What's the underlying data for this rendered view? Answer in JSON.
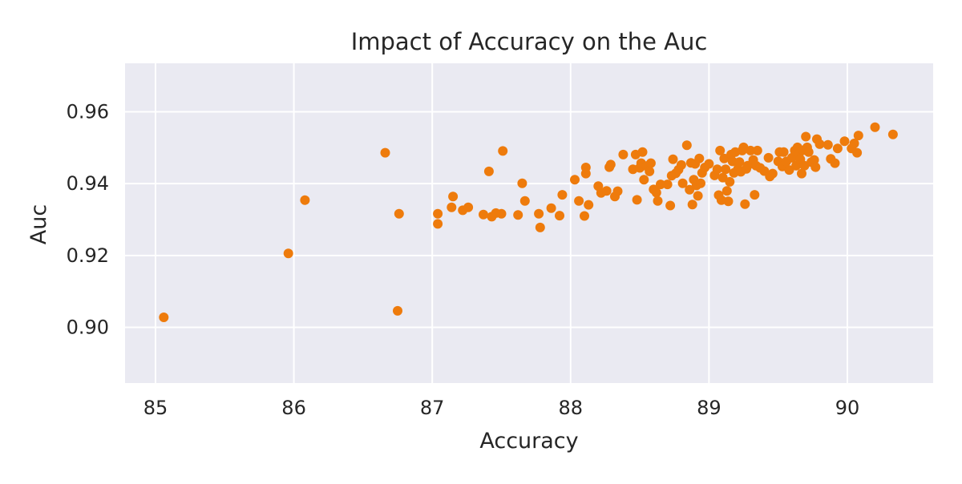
{
  "chart_data": {
    "type": "scatter",
    "title": "Impact of Accuracy on the Auc",
    "xlabel": "Accuracy",
    "ylabel": "Auc",
    "xlim": [
      84.78,
      90.62
    ],
    "ylim": [
      0.8845,
      0.9735
    ],
    "xticks": [
      85,
      86,
      87,
      88,
      89,
      90
    ],
    "yticks": [
      0.9,
      0.92,
      0.94,
      0.96
    ],
    "xtick_labels": [
      "85",
      "86",
      "87",
      "88",
      "89",
      "90"
    ],
    "ytick_labels": [
      "0.90",
      "0.92",
      "0.94",
      "0.96"
    ],
    "grid": true,
    "colors": {
      "point": "#ee7b0c",
      "plot_bg": "#eaeaf2",
      "grid": "#ffffff"
    },
    "points": [
      [
        85.06,
        0.9028
      ],
      [
        85.96,
        0.9206
      ],
      [
        86.08,
        0.9354
      ],
      [
        86.66,
        0.9486
      ],
      [
        86.75,
        0.9046
      ],
      [
        86.76,
        0.9316
      ],
      [
        87.04,
        0.9316
      ],
      [
        87.04,
        0.9288
      ],
      [
        87.14,
        0.9334
      ],
      [
        87.15,
        0.9364
      ],
      [
        87.22,
        0.9326
      ],
      [
        87.26,
        0.9334
      ],
      [
        87.37,
        0.9314
      ],
      [
        87.41,
        0.9434
      ],
      [
        87.43,
        0.9308
      ],
      [
        87.46,
        0.9318
      ],
      [
        87.5,
        0.9316
      ],
      [
        87.51,
        0.9491
      ],
      [
        87.62,
        0.9313
      ],
      [
        87.65,
        0.9401
      ],
      [
        87.67,
        0.9352
      ],
      [
        87.77,
        0.9316
      ],
      [
        87.78,
        0.9278
      ],
      [
        87.86,
        0.9332
      ],
      [
        87.92,
        0.9311
      ],
      [
        87.94,
        0.9369
      ],
      [
        88.03,
        0.9411
      ],
      [
        88.06,
        0.9352
      ],
      [
        88.1,
        0.931
      ],
      [
        88.11,
        0.9445
      ],
      [
        88.11,
        0.9428
      ],
      [
        88.13,
        0.9341
      ],
      [
        88.2,
        0.9393
      ],
      [
        88.22,
        0.9374
      ],
      [
        88.26,
        0.938
      ],
      [
        88.28,
        0.9446
      ],
      [
        88.29,
        0.9453
      ],
      [
        88.32,
        0.9364
      ],
      [
        88.34,
        0.9379
      ],
      [
        88.38,
        0.9481
      ],
      [
        88.45,
        0.944
      ],
      [
        88.47,
        0.9481
      ],
      [
        88.48,
        0.9355
      ],
      [
        88.5,
        0.9444
      ],
      [
        88.51,
        0.9457
      ],
      [
        88.52,
        0.9488
      ],
      [
        88.53,
        0.9411
      ],
      [
        88.55,
        0.9449
      ],
      [
        88.57,
        0.9434
      ],
      [
        88.58,
        0.9457
      ],
      [
        88.6,
        0.9384
      ],
      [
        88.62,
        0.9375
      ],
      [
        88.63,
        0.9352
      ],
      [
        88.65,
        0.9398
      ],
      [
        88.7,
        0.9398
      ],
      [
        88.72,
        0.9339
      ],
      [
        88.73,
        0.9422
      ],
      [
        88.74,
        0.9468
      ],
      [
        88.76,
        0.9429
      ],
      [
        88.78,
        0.9439
      ],
      [
        88.8,
        0.9452
      ],
      [
        88.81,
        0.9401
      ],
      [
        88.84,
        0.9507
      ],
      [
        88.86,
        0.9383
      ],
      [
        88.87,
        0.9458
      ],
      [
        88.88,
        0.9342
      ],
      [
        88.89,
        0.9411
      ],
      [
        88.9,
        0.9455
      ],
      [
        88.91,
        0.9395
      ],
      [
        88.92,
        0.9366
      ],
      [
        88.93,
        0.947
      ],
      [
        88.94,
        0.9401
      ],
      [
        88.95,
        0.943
      ],
      [
        88.97,
        0.9445
      ],
      [
        89.0,
        0.9455
      ],
      [
        89.04,
        0.9423
      ],
      [
        89.06,
        0.944
      ],
      [
        89.07,
        0.9368
      ],
      [
        89.08,
        0.9492
      ],
      [
        89.09,
        0.9354
      ],
      [
        89.1,
        0.9417
      ],
      [
        89.11,
        0.947
      ],
      [
        89.12,
        0.944
      ],
      [
        89.13,
        0.938
      ],
      [
        89.14,
        0.9351
      ],
      [
        89.15,
        0.9405
      ],
      [
        89.16,
        0.9481
      ],
      [
        89.17,
        0.9462
      ],
      [
        89.18,
        0.943
      ],
      [
        89.19,
        0.9488
      ],
      [
        89.21,
        0.9441
      ],
      [
        89.22,
        0.946
      ],
      [
        89.23,
        0.9433
      ],
      [
        89.24,
        0.9492
      ],
      [
        89.25,
        0.9501
      ],
      [
        89.26,
        0.9343
      ],
      [
        89.27,
        0.9441
      ],
      [
        89.28,
        0.945
      ],
      [
        89.3,
        0.9492
      ],
      [
        89.32,
        0.9466
      ],
      [
        89.33,
        0.9369
      ],
      [
        89.34,
        0.945
      ],
      [
        89.35,
        0.9492
      ],
      [
        89.37,
        0.9444
      ],
      [
        89.4,
        0.9435
      ],
      [
        89.43,
        0.9472
      ],
      [
        89.44,
        0.942
      ],
      [
        89.46,
        0.9428
      ],
      [
        89.5,
        0.9462
      ],
      [
        89.51,
        0.9488
      ],
      [
        89.53,
        0.9448
      ],
      [
        89.54,
        0.9488
      ],
      [
        89.56,
        0.9462
      ],
      [
        89.58,
        0.9438
      ],
      [
        89.6,
        0.9472
      ],
      [
        89.62,
        0.9492
      ],
      [
        89.63,
        0.945
      ],
      [
        89.64,
        0.9501
      ],
      [
        89.65,
        0.9484
      ],
      [
        89.66,
        0.9468
      ],
      [
        89.67,
        0.9428
      ],
      [
        89.68,
        0.9493
      ],
      [
        89.69,
        0.945
      ],
      [
        89.7,
        0.9531
      ],
      [
        89.71,
        0.9501
      ],
      [
        89.72,
        0.9488
      ],
      [
        89.74,
        0.946
      ],
      [
        89.76,
        0.9466
      ],
      [
        89.77,
        0.9446
      ],
      [
        89.78,
        0.9524
      ],
      [
        89.8,
        0.951
      ],
      [
        89.86,
        0.9508
      ],
      [
        89.88,
        0.9469
      ],
      [
        89.91,
        0.9457
      ],
      [
        89.93,
        0.9498
      ],
      [
        89.98,
        0.9518
      ],
      [
        90.03,
        0.9498
      ],
      [
        90.05,
        0.9512
      ],
      [
        90.07,
        0.9486
      ],
      [
        90.08,
        0.9534
      ],
      [
        90.2,
        0.9557
      ],
      [
        90.33,
        0.9537
      ]
    ]
  }
}
